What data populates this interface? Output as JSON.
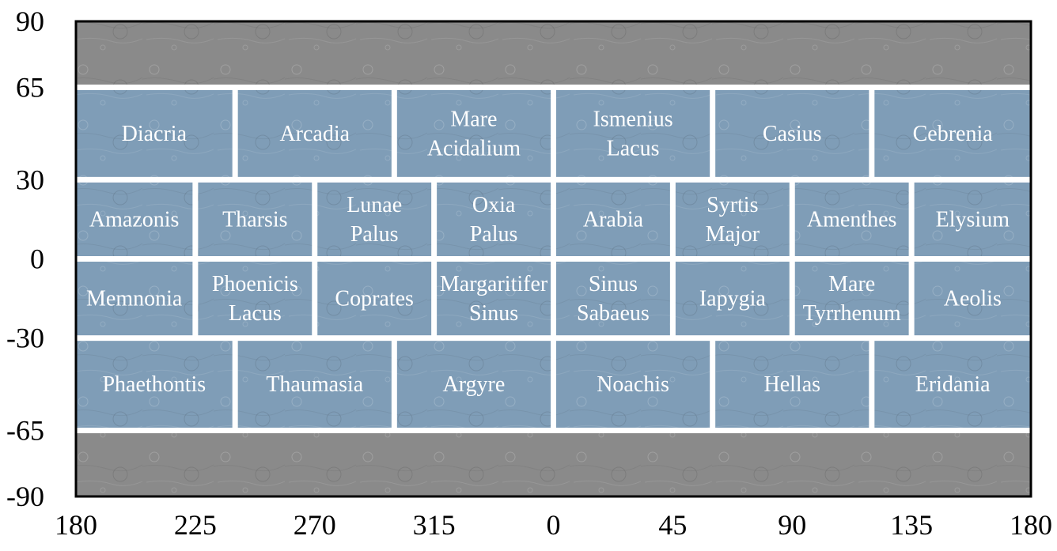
{
  "chart_data": {
    "type": "map",
    "projection": "equirectangular",
    "xlim": [
      180,
      540
    ],
    "ylim": [
      -90,
      90
    ],
    "x_ticks": [
      {
        "value": 180,
        "label": "180"
      },
      {
        "value": 225,
        "label": "225"
      },
      {
        "value": 270,
        "label": "270"
      },
      {
        "value": 315,
        "label": "315"
      },
      {
        "value": 360,
        "label": "0"
      },
      {
        "value": 405,
        "label": "45"
      },
      {
        "value": 450,
        "label": "90"
      },
      {
        "value": 495,
        "label": "135"
      },
      {
        "value": 540,
        "label": "180"
      }
    ],
    "y_ticks": [
      {
        "value": 90,
        "label": "90"
      },
      {
        "value": 65,
        "label": "65"
      },
      {
        "value": 30,
        "label": "30"
      },
      {
        "value": 0,
        "label": "0"
      },
      {
        "value": -30,
        "label": "-30"
      },
      {
        "value": -65,
        "label": "-65"
      },
      {
        "value": -90,
        "label": "-90"
      }
    ],
    "colors": {
      "quadrangle_fill": "#7f9db7",
      "polar_fill": "#8a8a8a",
      "grid_line": "#ffffff",
      "frame": "#000000",
      "label_text": "#ffffff",
      "tick_text": "#000000"
    },
    "quadrangles": [
      {
        "name": "Diacria",
        "lines": [
          "Diacria"
        ],
        "lon_min": 180,
        "lon_max": 240,
        "lat_min": 30,
        "lat_max": 65
      },
      {
        "name": "Arcadia",
        "lines": [
          "Arcadia"
        ],
        "lon_min": 240,
        "lon_max": 300,
        "lat_min": 30,
        "lat_max": 65
      },
      {
        "name": "Mare Acidalium",
        "lines": [
          "Mare",
          "Acidalium"
        ],
        "lon_min": 300,
        "lon_max": 360,
        "lat_min": 30,
        "lat_max": 65
      },
      {
        "name": "Ismenius Lacus",
        "lines": [
          "Ismenius",
          "Lacus"
        ],
        "lon_min": 360,
        "lon_max": 420,
        "lat_min": 30,
        "lat_max": 65
      },
      {
        "name": "Casius",
        "lines": [
          "Casius"
        ],
        "lon_min": 420,
        "lon_max": 480,
        "lat_min": 30,
        "lat_max": 65
      },
      {
        "name": "Cebrenia",
        "lines": [
          "Cebrenia"
        ],
        "lon_min": 480,
        "lon_max": 540,
        "lat_min": 30,
        "lat_max": 65
      },
      {
        "name": "Amazonis",
        "lines": [
          "Amazonis"
        ],
        "lon_min": 180,
        "lon_max": 225,
        "lat_min": 0,
        "lat_max": 30
      },
      {
        "name": "Tharsis",
        "lines": [
          "Tharsis"
        ],
        "lon_min": 225,
        "lon_max": 270,
        "lat_min": 0,
        "lat_max": 30
      },
      {
        "name": "Lunae Palus",
        "lines": [
          "Lunae",
          "Palus"
        ],
        "lon_min": 270,
        "lon_max": 315,
        "lat_min": 0,
        "lat_max": 30
      },
      {
        "name": "Oxia Palus",
        "lines": [
          "Oxia",
          "Palus"
        ],
        "lon_min": 315,
        "lon_max": 360,
        "lat_min": 0,
        "lat_max": 30
      },
      {
        "name": "Arabia",
        "lines": [
          "Arabia"
        ],
        "lon_min": 360,
        "lon_max": 405,
        "lat_min": 0,
        "lat_max": 30
      },
      {
        "name": "Syrtis Major",
        "lines": [
          "Syrtis",
          "Major"
        ],
        "lon_min": 405,
        "lon_max": 450,
        "lat_min": 0,
        "lat_max": 30
      },
      {
        "name": "Amenthes",
        "lines": [
          "Amenthes"
        ],
        "lon_min": 450,
        "lon_max": 495,
        "lat_min": 0,
        "lat_max": 30
      },
      {
        "name": "Elysium",
        "lines": [
          "Elysium"
        ],
        "lon_min": 495,
        "lon_max": 540,
        "lat_min": 0,
        "lat_max": 30
      },
      {
        "name": "Memnonia",
        "lines": [
          "Memnonia"
        ],
        "lon_min": 180,
        "lon_max": 225,
        "lat_min": -30,
        "lat_max": 0
      },
      {
        "name": "Phoenicis Lacus",
        "lines": [
          "Phoenicis",
          "Lacus"
        ],
        "lon_min": 225,
        "lon_max": 270,
        "lat_min": -30,
        "lat_max": 0
      },
      {
        "name": "Coprates",
        "lines": [
          "Coprates"
        ],
        "lon_min": 270,
        "lon_max": 315,
        "lat_min": -30,
        "lat_max": 0
      },
      {
        "name": "Margaritifer Sinus",
        "lines": [
          "Margaritifer",
          "Sinus"
        ],
        "lon_min": 315,
        "lon_max": 360,
        "lat_min": -30,
        "lat_max": 0
      },
      {
        "name": "Sinus Sabaeus",
        "lines": [
          "Sinus",
          "Sabaeus"
        ],
        "lon_min": 360,
        "lon_max": 405,
        "lat_min": -30,
        "lat_max": 0
      },
      {
        "name": "Iapygia",
        "lines": [
          "Iapygia"
        ],
        "lon_min": 405,
        "lon_max": 450,
        "lat_min": -30,
        "lat_max": 0
      },
      {
        "name": "Mare Tyrrhenum",
        "lines": [
          "Mare",
          "Tyrrhenum"
        ],
        "lon_min": 450,
        "lon_max": 495,
        "lat_min": -30,
        "lat_max": 0
      },
      {
        "name": "Aeolis",
        "lines": [
          "Aeolis"
        ],
        "lon_min": 495,
        "lon_max": 540,
        "lat_min": -30,
        "lat_max": 0
      },
      {
        "name": "Phaethontis",
        "lines": [
          "Phaethontis"
        ],
        "lon_min": 180,
        "lon_max": 240,
        "lat_min": -65,
        "lat_max": -30
      },
      {
        "name": "Thaumasia",
        "lines": [
          "Thaumasia"
        ],
        "lon_min": 240,
        "lon_max": 300,
        "lat_min": -65,
        "lat_max": -30
      },
      {
        "name": "Argyre",
        "lines": [
          "Argyre"
        ],
        "lon_min": 300,
        "lon_max": 360,
        "lat_min": -65,
        "lat_max": -30
      },
      {
        "name": "Noachis",
        "lines": [
          "Noachis"
        ],
        "lon_min": 360,
        "lon_max": 420,
        "lat_min": -65,
        "lat_max": -30
      },
      {
        "name": "Hellas",
        "lines": [
          "Hellas"
        ],
        "lon_min": 420,
        "lon_max": 480,
        "lat_min": -65,
        "lat_max": -30
      },
      {
        "name": "Eridania",
        "lines": [
          "Eridania"
        ],
        "lon_min": 480,
        "lon_max": 540,
        "lat_min": -65,
        "lat_max": -30
      }
    ]
  }
}
